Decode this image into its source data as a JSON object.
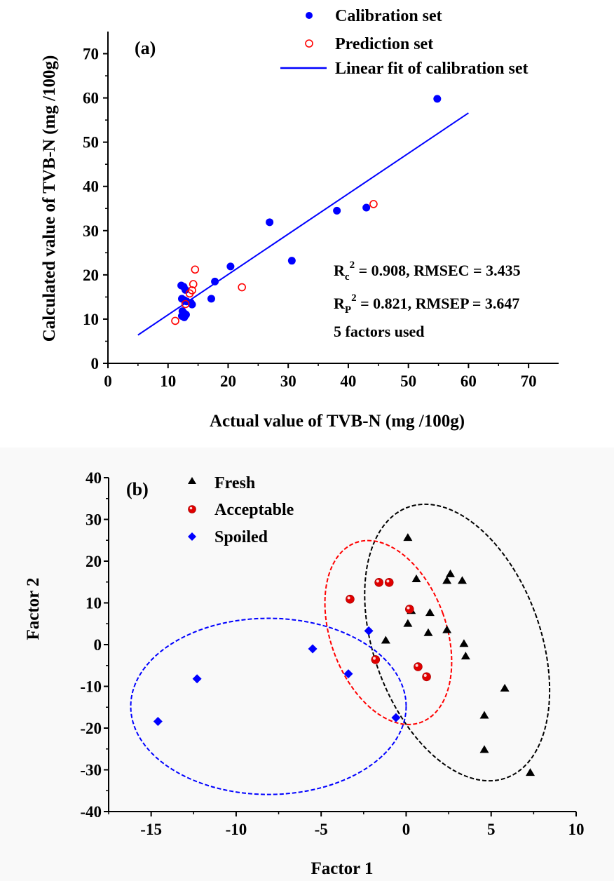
{
  "chart_data": [
    {
      "panel": "(a)",
      "type": "scatter",
      "xlabel": "Actual value of TVB-N (mg /100g)",
      "ylabel": "Calculated value of TVB-N (mg /100g)",
      "xlim": [
        0,
        75
      ],
      "ylim": [
        0,
        75
      ],
      "xticks": [
        0,
        10,
        20,
        30,
        40,
        50,
        60,
        70
      ],
      "yticks": [
        0,
        10,
        20,
        30,
        40,
        50,
        60,
        70
      ],
      "legend": {
        "position": "top-right",
        "entries": [
          "Calibration set",
          "Prediction set",
          "Linear fit of calibration set"
        ]
      },
      "series": [
        {
          "name": "Calibration set",
          "marker": "filled-circle",
          "color": "#0000ff",
          "points": [
            [
              12.2,
              17.6
            ],
            [
              12.6,
              17.3
            ],
            [
              12.9,
              16.6
            ],
            [
              12.3,
              14.6
            ],
            [
              12.7,
              14.3
            ],
            [
              13.1,
              14.0
            ],
            [
              13.8,
              13.7
            ],
            [
              12.4,
              11.8
            ],
            [
              12.8,
              11.2
            ],
            [
              12.3,
              10.7
            ],
            [
              12.7,
              10.4
            ],
            [
              13.0,
              11.0
            ],
            [
              14.0,
              13.3
            ],
            [
              17.2,
              14.6
            ],
            [
              17.8,
              18.5
            ],
            [
              20.4,
              21.9
            ],
            [
              26.9,
              31.9
            ],
            [
              30.6,
              23.2
            ],
            [
              38.1,
              34.5
            ],
            [
              43.0,
              35.2
            ],
            [
              54.8,
              59.8
            ]
          ]
        },
        {
          "name": "Prediction set",
          "marker": "open-circle",
          "color": "#ff0000",
          "points": [
            [
              11.2,
              9.6
            ],
            [
              12.9,
              13.4
            ],
            [
              13.6,
              15.8
            ],
            [
              14.0,
              16.5
            ],
            [
              14.2,
              17.9
            ],
            [
              14.5,
              21.2
            ],
            [
              22.3,
              17.2
            ],
            [
              44.2,
              36.0
            ]
          ]
        },
        {
          "name": "Linear fit of calibration set",
          "type": "line",
          "color": "#0000ff",
          "points": [
            [
              5,
              6.4
            ],
            [
              60,
              56.6
            ]
          ]
        }
      ],
      "annotations": {
        "rc2": {
          "r": "R",
          "sub": "c",
          "sup": "2",
          "rest": " = 0.908, RMSEC = 3.435"
        },
        "rp2": {
          "r": "R",
          "sub": "P",
          "sup": "2",
          "rest": " = 0.821, RMSEP = 3.647"
        },
        "factors": "5 factors used"
      }
    },
    {
      "panel": "(b)",
      "type": "scatter",
      "xlabel": "Factor 1",
      "ylabel": "Factor 2",
      "xlim": [
        -17.5,
        10
      ],
      "ylim": [
        -40,
        40
      ],
      "xticks": [
        -15,
        -10,
        -5,
        0,
        5,
        10
      ],
      "yticks": [
        -40,
        -30,
        -20,
        -10,
        0,
        10,
        20,
        30,
        40
      ],
      "legend": {
        "position": "top-left",
        "entries": [
          "Fresh",
          "Acceptable",
          "Spoiled"
        ]
      },
      "series": [
        {
          "name": "Fresh",
          "marker": "triangle",
          "color": "#000000",
          "points": [
            [
              0.1,
              25.7
            ],
            [
              2.6,
              17.0
            ],
            [
              0.6,
              15.8
            ],
            [
              2.4,
              15.4
            ],
            [
              3.3,
              15.4
            ],
            [
              0.3,
              8.2
            ],
            [
              1.4,
              7.7
            ],
            [
              0.1,
              5.1
            ],
            [
              -1.2,
              1.1
            ],
            [
              1.3,
              2.9
            ],
            [
              2.4,
              3.6
            ],
            [
              3.4,
              0.3
            ],
            [
              3.5,
              -2.7
            ],
            [
              5.8,
              -10.4
            ],
            [
              4.6,
              -16.9
            ],
            [
              4.6,
              -25.1
            ],
            [
              7.3,
              -30.6
            ]
          ]
        },
        {
          "name": "Acceptable",
          "marker": "red-sphere",
          "color": "#ff0000",
          "points": [
            [
              -1.6,
              14.9
            ],
            [
              -1.0,
              14.9
            ],
            [
              -3.3,
              10.9
            ],
            [
              0.2,
              8.5
            ],
            [
              -1.8,
              -3.6
            ],
            [
              0.7,
              -5.3
            ],
            [
              1.2,
              -7.7
            ]
          ]
        },
        {
          "name": "Spoiled",
          "marker": "diamond",
          "color": "#0000ff",
          "points": [
            [
              -2.2,
              3.3
            ],
            [
              -5.5,
              -1.0
            ],
            [
              -3.4,
              -7.0
            ],
            [
              -12.3,
              -8.2
            ],
            [
              -0.6,
              -17.5
            ],
            [
              -14.6,
              -18.4
            ]
          ]
        }
      ],
      "ellipses": [
        {
          "group": "Fresh",
          "color": "#000000",
          "center": [
            3.0,
            0.5
          ],
          "semi_axes_data": [
            4.9,
            34.5
          ],
          "rotation_deg": -20
        },
        {
          "group": "Acceptable",
          "color": "#ff0000",
          "center": [
            -1.05,
            2.9
          ],
          "semi_axes_data": [
            3.4,
            22.9
          ],
          "rotation_deg": -20
        },
        {
          "group": "Spoiled",
          "color": "#0000ff",
          "center": [
            -8.1,
            -14.8
          ],
          "semi_axes_data": [
            8.1,
            21.1
          ],
          "rotation_deg": 0
        }
      ]
    }
  ]
}
